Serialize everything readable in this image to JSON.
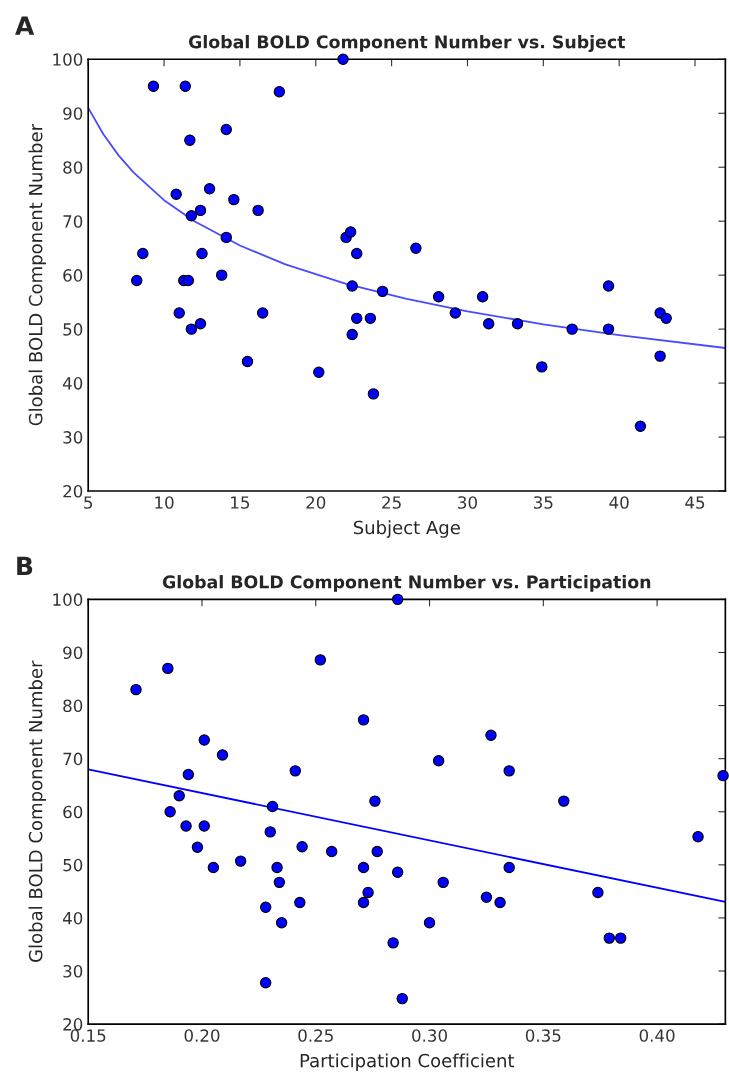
{
  "chart_data": [
    {
      "type": "scatter",
      "title": "Global BOLD Component Number vs. Subject",
      "xlabel": "Subject Age",
      "ylabel": "Global BOLD Component Number",
      "annotations": [
        "A"
      ],
      "xlim": [
        5,
        47
      ],
      "xticks": [
        5,
        10,
        15,
        20,
        25,
        30,
        35,
        40,
        45
      ],
      "ylim": [
        20,
        100
      ],
      "yticks": [
        20,
        30,
        40,
        50,
        60,
        70,
        80,
        90,
        100
      ],
      "grid": false,
      "legend": false,
      "series": [
        {
          "marker": "circle",
          "color": "#0000ff",
          "x": [
            8.2,
            8.6,
            9.3,
            10.8,
            11.0,
            11.3,
            11.4,
            11.6,
            11.7,
            11.8,
            11.8,
            12.4,
            12.5,
            12.4,
            13.0,
            13.8,
            14.1,
            14.1,
            14.6,
            15.5,
            16.2,
            16.5,
            17.6,
            20.2,
            21.8,
            22.0,
            22.3,
            22.4,
            22.4,
            22.7,
            22.7,
            23.6,
            23.8,
            24.4,
            26.6,
            28.1,
            29.2,
            31.0,
            31.4,
            33.3,
            34.9,
            36.9,
            39.3,
            39.3,
            41.4,
            42.7,
            42.7,
            43.1
          ],
          "values": [
            59,
            64,
            95,
            75,
            53,
            59,
            95,
            59,
            85,
            71,
            50,
            72,
            64,
            51,
            76,
            60,
            87,
            67,
            74,
            44,
            72,
            53,
            94,
            42,
            100,
            67,
            68,
            58,
            49,
            64,
            52,
            52,
            38,
            57,
            65,
            56,
            53,
            56,
            51,
            51,
            43,
            50,
            58,
            50,
            32,
            53,
            45,
            52
          ]
        },
        {
          "type": "line",
          "color": "#4a4aff",
          "line_style": "solid",
          "x": [
            5,
            6,
            7,
            8,
            10,
            12,
            15,
            18,
            22,
            26,
            30,
            35,
            40,
            47
          ],
          "values": [
            91.0,
            86.1,
            82.2,
            79.0,
            73.9,
            70.0,
            65.5,
            62.0,
            58.4,
            55.6,
            53.3,
            50.9,
            48.9,
            46.5
          ]
        }
      ]
    },
    {
      "type": "scatter",
      "title": "Global BOLD Component Number vs. Participation",
      "xlabel": "Participation Coefficient",
      "ylabel": "Global BOLD Component Number",
      "annotations": [
        "B"
      ],
      "xlim": [
        0.15,
        0.43
      ],
      "xticks": [
        {
          "value": 0.15,
          "label": "0.15"
        },
        {
          "value": 0.2,
          "label": "0.20"
        },
        {
          "value": 0.25,
          "label": "0.25"
        },
        {
          "value": 0.3,
          "label": "0.30"
        },
        {
          "value": 0.35,
          "label": "0.35"
        },
        {
          "value": 0.4,
          "label": "0.40"
        }
      ],
      "ylim": [
        20,
        100
      ],
      "yticks": [
        20,
        30,
        40,
        50,
        60,
        70,
        80,
        90,
        100
      ],
      "grid": false,
      "legend": false,
      "series": [
        {
          "marker": "circle",
          "color": "#0000ff",
          "x": [
            0.171,
            0.185,
            0.186,
            0.19,
            0.193,
            0.194,
            0.198,
            0.201,
            0.201,
            0.205,
            0.209,
            0.217,
            0.228,
            0.228,
            0.23,
            0.231,
            0.233,
            0.234,
            0.235,
            0.241,
            0.243,
            0.244,
            0.252,
            0.257,
            0.271,
            0.271,
            0.271,
            0.273,
            0.276,
            0.277,
            0.284,
            0.286,
            0.286,
            0.288,
            0.3,
            0.304,
            0.306,
            0.325,
            0.327,
            0.331,
            0.335,
            0.335,
            0.359,
            0.374,
            0.379,
            0.384,
            0.418,
            0.429
          ],
          "values": [
            83,
            87,
            60,
            63,
            57.3,
            67,
            53.3,
            73.5,
            57.3,
            49.5,
            70.7,
            50.7,
            42,
            27.8,
            56.2,
            61,
            49.5,
            46.7,
            39.1,
            67.7,
            42.9,
            53.4,
            88.6,
            52.5,
            77.3,
            49.5,
            42.9,
            44.8,
            62,
            52.5,
            35.3,
            100,
            48.6,
            24.8,
            39.1,
            69.6,
            46.7,
            43.9,
            74.4,
            42.9,
            67.7,
            49.5,
            62,
            44.8,
            36.2,
            36.2,
            55.3,
            66.8
          ]
        },
        {
          "type": "line",
          "color": "#0000ff",
          "line_style": "solid",
          "x": [
            0.15,
            0.43
          ],
          "values": [
            68,
            43
          ]
        }
      ]
    }
  ]
}
